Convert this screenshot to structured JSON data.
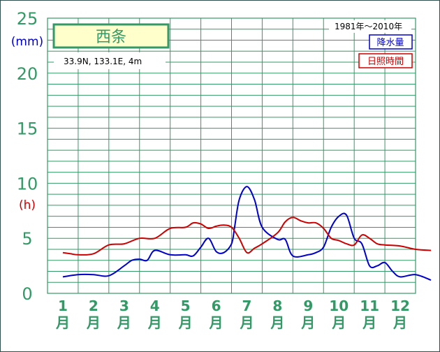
{
  "chart_data": {
    "type": "line",
    "title": "西条",
    "location": "33.9N,  133.1E,  4m",
    "period": "1981年〜2010年",
    "unit_left_top": "(mm)",
    "unit_left_mid": "(h)",
    "y_ticks": [
      "0",
      "5",
      "10",
      "15",
      "20",
      "25"
    ],
    "ylim": [
      0,
      25
    ],
    "grid": true,
    "legend_placement": "top-right",
    "categories": [
      "1",
      "2",
      "3",
      "4",
      "5",
      "6",
      "7",
      "8",
      "9",
      "10",
      "11",
      "12"
    ],
    "month_suffix": "月",
    "series": [
      {
        "name": "降水量",
        "color": "#0000cc",
        "x": [
          0.5,
          1.0,
          1.5,
          2.0,
          2.5,
          2.75,
          3.0,
          3.25,
          3.5,
          4.0,
          4.5,
          4.75,
          5.0,
          5.25,
          5.5,
          5.75,
          6.0,
          6.1,
          6.25,
          6.5,
          6.75,
          7.0,
          7.5,
          7.75,
          8.0,
          8.5,
          8.75,
          9.0,
          9.25,
          9.5,
          9.75,
          10.0,
          10.25,
          10.5,
          10.75,
          11.0,
          11.25,
          11.5,
          12.0,
          12.5
        ],
        "values": [
          1.5,
          1.7,
          1.7,
          1.6,
          2.5,
          3.0,
          3.1,
          3.0,
          3.9,
          3.5,
          3.5,
          3.4,
          4.2,
          5.0,
          3.8,
          3.7,
          4.5,
          6.0,
          8.5,
          9.7,
          8.5,
          6.0,
          4.9,
          4.9,
          3.4,
          3.5,
          3.7,
          4.2,
          6.0,
          7.0,
          7.1,
          5.0,
          4.5,
          2.5,
          2.5,
          2.8,
          2.0,
          1.5,
          1.7,
          1.2
        ]
      },
      {
        "name": "日照時間",
        "color": "#cc0000",
        "x": [
          0.5,
          0.75,
          1.0,
          1.5,
          2.0,
          2.5,
          3.0,
          3.5,
          4.0,
          4.5,
          4.75,
          5.0,
          5.25,
          5.5,
          5.75,
          6.0,
          6.25,
          6.5,
          6.75,
          7.0,
          7.5,
          7.75,
          8.0,
          8.25,
          8.5,
          8.75,
          9.0,
          9.25,
          9.5,
          9.75,
          10.0,
          10.25,
          10.5,
          10.75,
          11.0,
          11.5,
          12.0,
          12.5
        ],
        "values": [
          3.7,
          3.6,
          3.5,
          3.6,
          4.4,
          4.5,
          5.0,
          5.0,
          5.9,
          6.0,
          6.4,
          6.3,
          5.9,
          6.1,
          6.2,
          6.0,
          5.0,
          3.7,
          4.1,
          4.5,
          5.5,
          6.5,
          6.9,
          6.6,
          6.4,
          6.4,
          5.9,
          5.0,
          4.8,
          4.5,
          4.4,
          5.3,
          5.0,
          4.5,
          4.4,
          4.3,
          4.0,
          3.9
        ]
      }
    ]
  }
}
